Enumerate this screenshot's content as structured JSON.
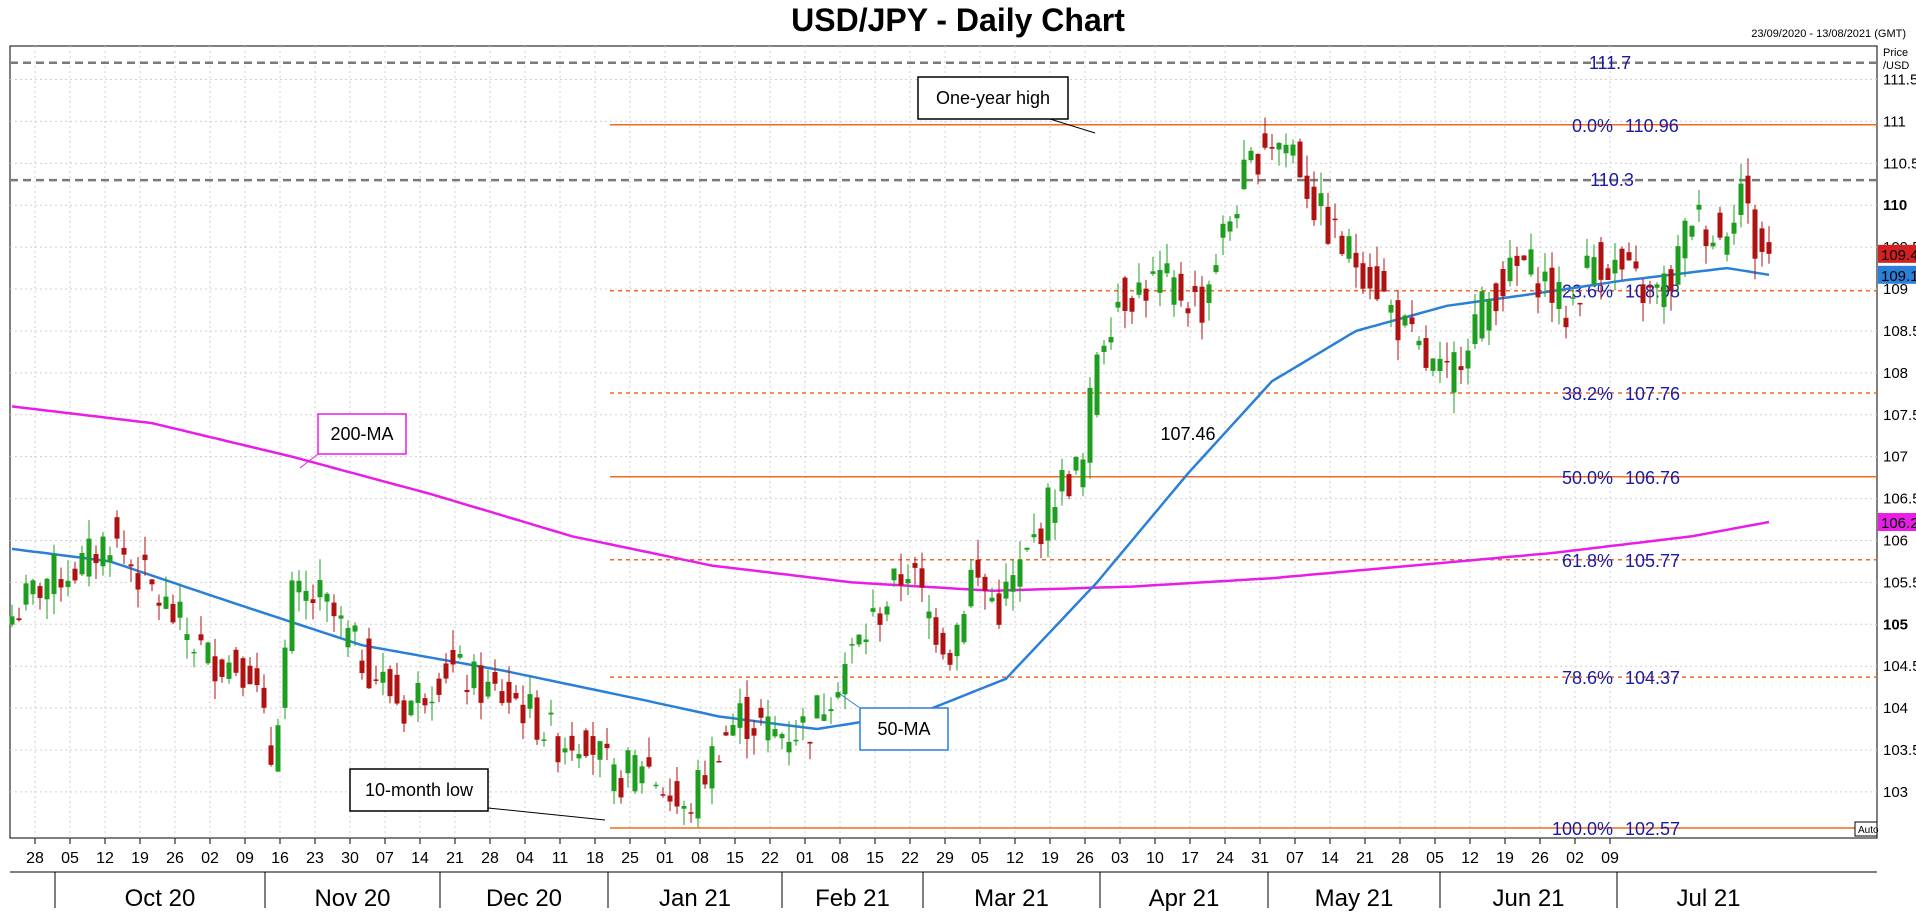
{
  "header": {
    "title": "USD/JPY - Daily Chart",
    "date_range": "23/09/2020 - 13/08/2021 (GMT)",
    "price_axis_title": [
      "Price",
      "/USD"
    ],
    "auto_label": "Auto"
  },
  "colors": {
    "bull": "#1e9e1e",
    "bear": "#b01212",
    "ma50": "#2a7fd9",
    "ma200": "#e81ee8",
    "fib_line": "#f06a20",
    "fib_text": "#1a1aa6",
    "resistance": "#7a7a7a",
    "grid": "#d0d0d0"
  },
  "annotations": {
    "one_year_high": "One-year high",
    "ten_month_low": "10-month low",
    "ma200_label": "200-MA",
    "ma50_label": "50-MA",
    "april_low": "107.46"
  },
  "chart_data": {
    "type": "candlestick",
    "title": "USD/JPY - Daily Chart",
    "ylim": [
      102.45,
      111.9
    ],
    "y_ticks": [
      {
        "value": 111.5,
        "label": "111.5"
      },
      {
        "value": 111,
        "label": "111"
      },
      {
        "value": 110.5,
        "label": "110.5"
      },
      {
        "value": 110,
        "label": "110",
        "bold": true
      },
      {
        "value": 109.5,
        "label": "109.5"
      },
      {
        "value": 109,
        "label": "109"
      },
      {
        "value": 108.5,
        "label": "108.5"
      },
      {
        "value": 108,
        "label": "108"
      },
      {
        "value": 107.5,
        "label": "107.5"
      },
      {
        "value": 107,
        "label": "107"
      },
      {
        "value": 106.5,
        "label": "106.5"
      },
      {
        "value": 106,
        "label": "106"
      },
      {
        "value": 105.5,
        "label": "105.5"
      },
      {
        "value": 105,
        "label": "105",
        "bold": true
      },
      {
        "value": 104.5,
        "label": "104.5"
      },
      {
        "value": 104,
        "label": "104"
      },
      {
        "value": 103.5,
        "label": "103.5"
      },
      {
        "value": 103,
        "label": "103"
      }
    ],
    "x_ticks": [
      "28",
      "05",
      "12",
      "19",
      "26",
      "02",
      "09",
      "16",
      "23",
      "30",
      "07",
      "14",
      "21",
      "28",
      "04",
      "11",
      "18",
      "25",
      "01",
      "08",
      "15",
      "22",
      "01",
      "08",
      "15",
      "22",
      "29",
      "05",
      "12",
      "19",
      "26",
      "03",
      "10",
      "17",
      "24",
      "31",
      "07",
      "14",
      "21",
      "28",
      "05",
      "12",
      "19",
      "26",
      "02",
      "09"
    ],
    "months": [
      "Oct 20",
      "Nov 20",
      "Dec 20",
      "Jan 21",
      "Feb 21",
      "Mar 21",
      "Apr 21",
      "May 21",
      "Jun 21",
      "Jul 21"
    ],
    "current_price": {
      "value": 109.42,
      "label": "109.42"
    },
    "ma50_current": {
      "value": 109.17,
      "label": "109.17"
    },
    "ma200_current": {
      "value": 106.22,
      "label": "106.22"
    },
    "resistance_levels": [
      {
        "value": 111.7,
        "label": "111.7"
      },
      {
        "value": 110.3,
        "label": "110.3"
      }
    ],
    "fibonacci": [
      {
        "pct": "0.0%",
        "value": 110.96,
        "label": "110.96",
        "style": "solid"
      },
      {
        "pct": "23.6%",
        "value": 108.98,
        "label": "108.98",
        "style": "dashed"
      },
      {
        "pct": "38.2%",
        "value": 107.76,
        "label": "107.76",
        "style": "dashed"
      },
      {
        "pct": "50.0%",
        "value": 106.76,
        "label": "106.76",
        "style": "solid"
      },
      {
        "pct": "61.8%",
        "value": 105.77,
        "label": "105.77",
        "style": "dashed"
      },
      {
        "pct": "78.6%",
        "value": 104.37,
        "label": "104.37",
        "style": "dashed"
      },
      {
        "pct": "100.0%",
        "value": 102.57,
        "label": "102.57",
        "style": "solid"
      }
    ],
    "ohlc_anchors": [
      [
        0,
        105.1
      ],
      [
        5,
        105.55
      ],
      [
        10,
        105.7
      ],
      [
        14,
        106.05
      ],
      [
        20,
        105.4
      ],
      [
        28,
        104.6
      ],
      [
        34,
        104.5
      ],
      [
        37,
        103.4
      ],
      [
        40,
        105.3
      ],
      [
        44,
        105.3
      ],
      [
        50,
        104.6
      ],
      [
        56,
        104.0
      ],
      [
        62,
        104.5
      ],
      [
        68,
        104.2
      ],
      [
        72,
        104.1
      ],
      [
        78,
        103.6
      ],
      [
        82,
        103.7
      ],
      [
        86,
        103.1
      ],
      [
        90,
        103.4
      ],
      [
        96,
        102.7
      ],
      [
        101,
        103.6
      ],
      [
        104,
        103.9
      ],
      [
        109,
        103.7
      ],
      [
        114,
        103.8
      ],
      [
        118,
        104.4
      ],
      [
        125,
        105.3
      ],
      [
        128,
        105.7
      ],
      [
        131,
        105.1
      ],
      [
        134,
        104.7
      ],
      [
        137,
        105.6
      ],
      [
        141,
        105.2
      ],
      [
        145,
        105.8
      ],
      [
        149,
        106.6
      ],
      [
        153,
        106.9
      ],
      [
        155,
        108.3
      ],
      [
        158,
        108.9
      ],
      [
        164,
        109.1
      ],
      [
        170,
        108.8
      ],
      [
        172,
        109.4
      ],
      [
        176,
        110.3
      ],
      [
        179,
        110.8
      ],
      [
        183,
        110.7
      ],
      [
        186,
        110.0
      ],
      [
        190,
        109.5
      ],
      [
        194,
        109.2
      ],
      [
        198,
        108.6
      ],
      [
        202,
        108.1
      ],
      [
        205,
        107.9
      ],
      [
        208,
        108.5
      ],
      [
        212,
        109.0
      ],
      [
        216,
        109.3
      ],
      [
        219,
        109.1
      ],
      [
        222,
        108.7
      ],
      [
        226,
        109.4
      ],
      [
        230,
        109.2
      ],
      [
        234,
        108.9
      ],
      [
        237,
        109.1
      ],
      [
        240,
        109.9
      ],
      [
        244,
        109.6
      ],
      [
        247,
        110.25
      ],
      [
        249,
        109.5
      ],
      [
        251,
        109.42
      ]
    ],
    "ma50_anchors": [
      [
        0,
        105.9
      ],
      [
        14,
        105.75
      ],
      [
        30,
        105.3
      ],
      [
        50,
        104.75
      ],
      [
        70,
        104.45
      ],
      [
        90,
        104.1
      ],
      [
        101,
        103.9
      ],
      [
        115,
        103.75
      ],
      [
        130,
        103.95
      ],
      [
        142,
        104.35
      ],
      [
        155,
        105.5
      ],
      [
        168,
        106.8
      ],
      [
        180,
        107.9
      ],
      [
        192,
        108.5
      ],
      [
        205,
        108.8
      ],
      [
        218,
        108.95
      ],
      [
        230,
        109.1
      ],
      [
        245,
        109.25
      ],
      [
        251,
        109.17
      ]
    ],
    "ma200_anchors": [
      [
        0,
        107.6
      ],
      [
        20,
        107.4
      ],
      [
        40,
        107.0
      ],
      [
        60,
        106.55
      ],
      [
        80,
        106.05
      ],
      [
        100,
        105.7
      ],
      [
        120,
        105.5
      ],
      [
        140,
        105.4
      ],
      [
        160,
        105.45
      ],
      [
        180,
        105.55
      ],
      [
        200,
        105.7
      ],
      [
        220,
        105.85
      ],
      [
        240,
        106.05
      ],
      [
        251,
        106.22
      ]
    ]
  }
}
